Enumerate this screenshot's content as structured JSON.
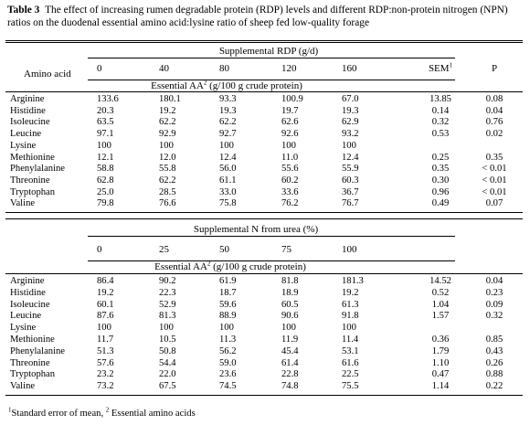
{
  "caption": {
    "label": "Table 3",
    "text": "The effect of increasing rumen degradable protein (RDP) levels and different RDP:non-protein nitrogen (NPN) ratios on the duodenal essential amino acid:lysine ratio of sheep fed low-quality forage"
  },
  "panel1": {
    "group_header": "Supplemental RDP (g/d)",
    "row_header": "Amino acid",
    "levels": [
      "0",
      "40",
      "80",
      "120",
      "160"
    ],
    "sem_label": "SEM",
    "sem_sup": "1",
    "p_label": "P",
    "sub_header": "Essential AA",
    "sub_header_sup": "2",
    "sub_header_unit": " (g/100 g crude protein)",
    "rows": [
      {
        "aa": "Arginine",
        "v": [
          "133.6",
          "180.1",
          "93.3",
          "100.9",
          "67.0"
        ],
        "sem": "13.85",
        "p": "0.08"
      },
      {
        "aa": "Histidine",
        "v": [
          "20.3",
          "19.2",
          "19.3",
          "19.7",
          "19.3"
        ],
        "sem": "0.14",
        "p": "0.04"
      },
      {
        "aa": "Isoleucine",
        "v": [
          "63.5",
          "62.2",
          "62.2",
          "62.6",
          "62.9"
        ],
        "sem": "0.32",
        "p": "0.76"
      },
      {
        "aa": "Leucine",
        "v": [
          "97.1",
          "92.9",
          "92.7",
          "92.6",
          "93.2"
        ],
        "sem": "0.53",
        "p": "0.02"
      },
      {
        "aa": "Lysine",
        "v": [
          "100",
          "100",
          "100",
          "100",
          "100"
        ],
        "sem": "",
        "p": ""
      },
      {
        "aa": "Methionine",
        "v": [
          "12.1",
          "12.0",
          "12.4",
          "11.0",
          "12.4"
        ],
        "sem": "0.25",
        "p": "0.35"
      },
      {
        "aa": "Phenylalanine",
        "v": [
          "58.8",
          "55.8",
          "56.0",
          "55.6",
          "55.9"
        ],
        "sem": "0.35",
        "p": "< 0.01"
      },
      {
        "aa": "Threonine",
        "v": [
          "62.8",
          "62.2",
          "61.1",
          "60.2",
          "60.3"
        ],
        "sem": "0.30",
        "p": "< 0.01"
      },
      {
        "aa": "Tryptophan",
        "v": [
          "25.0",
          "28.5",
          "33.0",
          "33.6",
          "36.7"
        ],
        "sem": "0.96",
        "p": "< 0.01"
      },
      {
        "aa": "Valine",
        "v": [
          "79.8",
          "76.6",
          "75.8",
          "76.2",
          "76.7"
        ],
        "sem": "0.49",
        "p": "0.07"
      }
    ]
  },
  "panel2": {
    "group_header": "Supplemental N from urea (%)",
    "levels": [
      "0",
      "25",
      "50",
      "75",
      "100"
    ],
    "sub_header": "Essential AA",
    "sub_header_sup": "2",
    "sub_header_unit": " (g/100 g crude protein)",
    "rows": [
      {
        "aa": "Arginine",
        "v": [
          "86.4",
          "90.2",
          "61.9",
          "81.8",
          "181.3"
        ],
        "sem": "14.52",
        "p": "0.04"
      },
      {
        "aa": "Histidine",
        "v": [
          "19.2",
          "22.3",
          "18.7",
          "18.9",
          "19.2"
        ],
        "sem": "0.52",
        "p": "0.23"
      },
      {
        "aa": "Isoleucine",
        "v": [
          "60.1",
          "52.9",
          "59.6",
          "60.5",
          "61.3"
        ],
        "sem": "1.04",
        "p": "0.09"
      },
      {
        "aa": "Leucine",
        "v": [
          "87.6",
          "81.3",
          "88.9",
          "90.6",
          "91.8"
        ],
        "sem": "1.57",
        "p": "0.32"
      },
      {
        "aa": "Lysine",
        "v": [
          "100",
          "100",
          "100",
          "100",
          "100"
        ],
        "sem": "",
        "p": ""
      },
      {
        "aa": "Methionine",
        "v": [
          "11.7",
          "10.5",
          "11.3",
          "11.9",
          "11.4"
        ],
        "sem": "0.36",
        "p": "0.85"
      },
      {
        "aa": "Phenylalanine",
        "v": [
          "51.3",
          "50.8",
          "56.2",
          "45.4",
          "53.1"
        ],
        "sem": "1.79",
        "p": "0.43"
      },
      {
        "aa": "Threonine",
        "v": [
          "57.6",
          "54.4",
          "59.0",
          "61.4",
          "61.6"
        ],
        "sem": "1.10",
        "p": "0.26"
      },
      {
        "aa": "Tryptophan",
        "v": [
          "23.2",
          "22.0",
          "23.6",
          "22.8",
          "22.5"
        ],
        "sem": "0.47",
        "p": "0.88"
      },
      {
        "aa": "Valine",
        "v": [
          "73.2",
          "67.5",
          "74.5",
          "74.8",
          "75.5"
        ],
        "sem": "1.14",
        "p": "0.22"
      }
    ]
  },
  "footnote": {
    "sup1": "1",
    "text1": "Standard error of mean, ",
    "sup2": "2",
    "text2": " Essential amino acids"
  }
}
